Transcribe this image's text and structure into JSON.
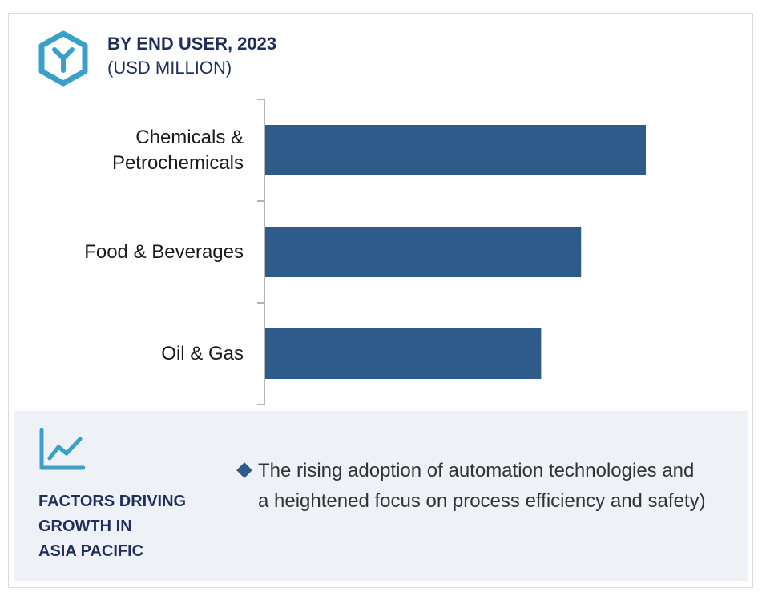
{
  "header": {
    "title": "BY END USER, 2023",
    "subtitle": "(USD MILLION)",
    "icon": "cube-y-icon"
  },
  "colors": {
    "bar": "#2e5b8a",
    "accent": "#3aa0c8",
    "title": "#1f2f5a",
    "footer_bg": "#eef2f7"
  },
  "chart_data": {
    "type": "bar",
    "orientation": "horizontal",
    "title": "BY END USER, 2023",
    "subtitle": "(USD MILLION)",
    "categories": [
      "Chemicals &\nPetrochemicals",
      "Food & Beverages",
      "Oil & Gas"
    ],
    "values": [
      100,
      83,
      72.5
    ],
    "xlim": [
      0,
      100
    ],
    "grid": false,
    "legend": "none",
    "value_axis_labels": false
  },
  "footer": {
    "icon": "trend-chart-icon",
    "title": "FACTORS DRIVING\nGROWTH IN\nASIA PACIFIC",
    "bullet_icon": "diamond-bullet-icon",
    "bullet_text": "The rising adoption of automation technologies and a heightened focus on process efficiency and safety)"
  }
}
